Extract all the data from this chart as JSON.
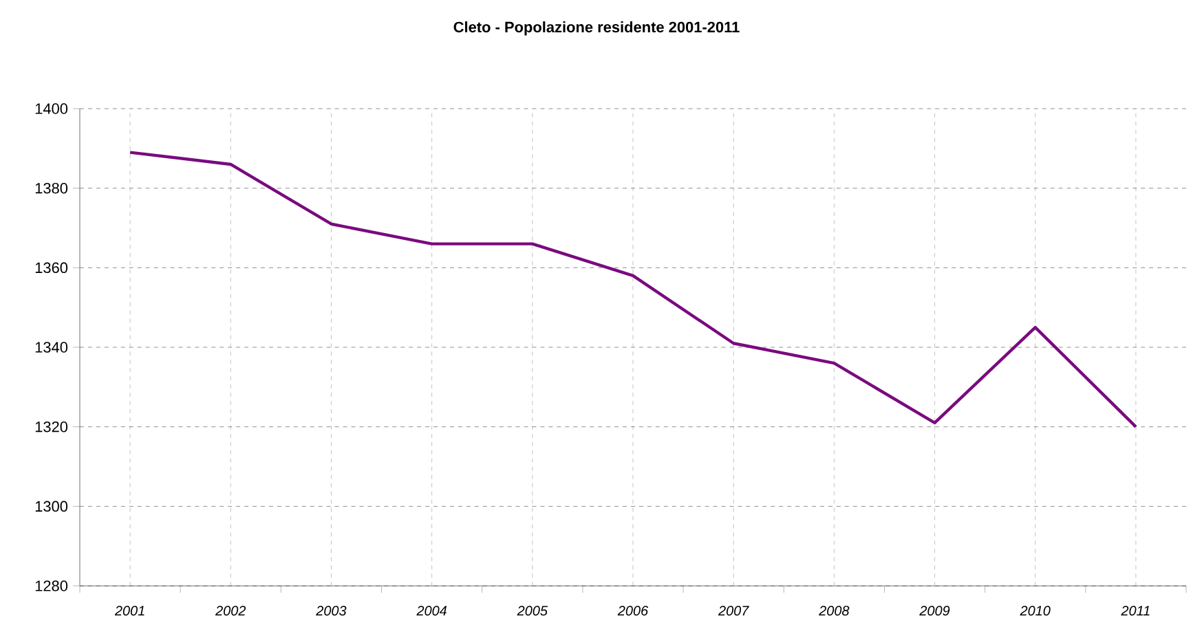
{
  "chart_data": {
    "type": "line",
    "title": "Cleto - Popolazione residente 2001-2011",
    "categories": [
      "2001",
      "2002",
      "2003",
      "2004",
      "2005",
      "2006",
      "2007",
      "2008",
      "2009",
      "2010",
      "2011"
    ],
    "series": [
      {
        "color": "#7a0a7e",
        "values": [
          1389,
          1386,
          1371,
          1366,
          1366,
          1358,
          1341,
          1336,
          1321,
          1345,
          1320
        ]
      }
    ],
    "ylim": [
      1280,
      1400
    ],
    "yticks": [
      1280,
      1300,
      1320,
      1340,
      1360,
      1380,
      1400
    ],
    "grid": true,
    "marker": "none",
    "line_style": "solid"
  }
}
